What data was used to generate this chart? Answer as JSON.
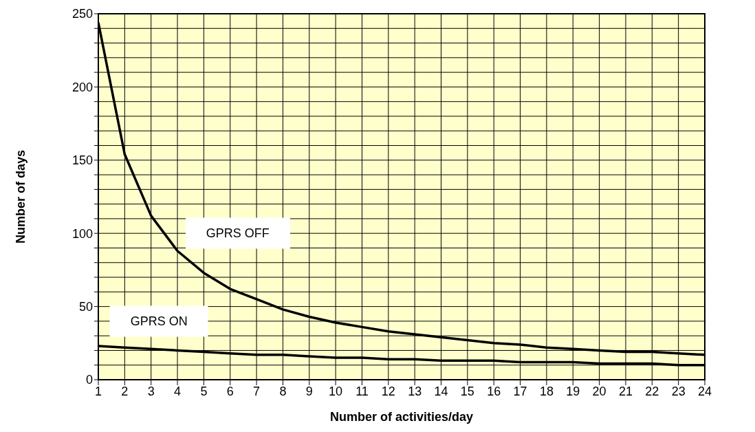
{
  "chart_data": {
    "type": "line",
    "xlabel": "Number of activities/day",
    "ylabel": "Number of days",
    "x": [
      1,
      2,
      3,
      4,
      5,
      6,
      7,
      8,
      9,
      10,
      11,
      12,
      13,
      14,
      15,
      16,
      17,
      18,
      19,
      20,
      21,
      22,
      23,
      24
    ],
    "series": [
      {
        "name": "GPRS OFF",
        "color": "#000000",
        "values": [
          244,
          154,
          112,
          88,
          73,
          62,
          55,
          48,
          43,
          39,
          36,
          33,
          31,
          29,
          27,
          25,
          24,
          22,
          21,
          20,
          19,
          19,
          18,
          17
        ]
      },
      {
        "name": "GPRS ON",
        "color": "#000000",
        "values": [
          23,
          22,
          21,
          20,
          19,
          18,
          17,
          17,
          16,
          15,
          15,
          14,
          14,
          13,
          13,
          13,
          12,
          12,
          12,
          11,
          11,
          11,
          10,
          10
        ]
      }
    ],
    "xlim": [
      1,
      24
    ],
    "xticks": [
      1,
      2,
      3,
      4,
      5,
      6,
      7,
      8,
      9,
      10,
      11,
      12,
      13,
      14,
      15,
      16,
      17,
      18,
      19,
      20,
      21,
      22,
      23,
      24
    ],
    "ylim": [
      0,
      250
    ],
    "yticks": [
      0,
      {
        "value": 10,
        "label": null
      },
      {
        "value": 20,
        "label": null
      },
      {
        "value": 30,
        "label": null
      },
      {
        "value": 40,
        "label": null
      },
      50,
      {
        "value": 60,
        "label": null
      },
      {
        "value": 70,
        "label": null
      },
      {
        "value": 80,
        "label": null
      },
      {
        "value": 90,
        "label": null
      },
      100,
      {
        "value": 110,
        "label": null
      },
      {
        "value": 120,
        "label": null
      },
      {
        "value": 130,
        "label": null
      },
      {
        "value": 140,
        "label": null
      },
      150,
      {
        "value": 160,
        "label": null
      },
      {
        "value": 170,
        "label": null
      },
      {
        "value": 180,
        "label": null
      },
      {
        "value": 190,
        "label": null
      },
      200,
      {
        "value": 210,
        "label": null
      },
      {
        "value": 220,
        "label": null
      },
      {
        "value": 230,
        "label": null
      },
      {
        "value": 240,
        "label": null
      },
      250
    ],
    "grid": true,
    "marker": "none",
    "line_style": "solid"
  }
}
